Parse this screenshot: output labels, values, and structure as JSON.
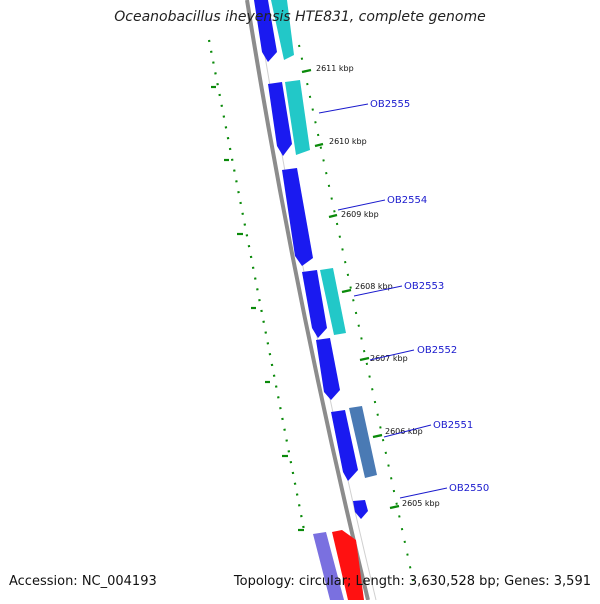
{
  "map": {
    "title": "Oceanobacillus iheyensis HTE831, complete genome",
    "accession_text": "Accession: NC_004193",
    "summary_text": "Topology: circular; Length: 3,630,528 bp; Genes: 3,591",
    "colors": {
      "backbone": "#8c8c8c",
      "tick": "#0a8a0a",
      "gene_label": "#1a1acd",
      "cds_blue": "#1a1af0",
      "cds_cyan": "#22c8c8",
      "cds_steel": "#4a7ab4",
      "cds_red": "#ff1111",
      "cds_violet": "#7a70e0"
    },
    "kbp_labels": [
      "2611 kbp",
      "2610 kbp",
      "2609 kbp",
      "2608 kbp",
      "2607 kbp",
      "2606 kbp",
      "2605 kbp"
    ],
    "gene_labels": [
      "OB2555",
      "OB2554",
      "OB2553",
      "OB2552",
      "OB2551",
      "OB2550"
    ]
  }
}
